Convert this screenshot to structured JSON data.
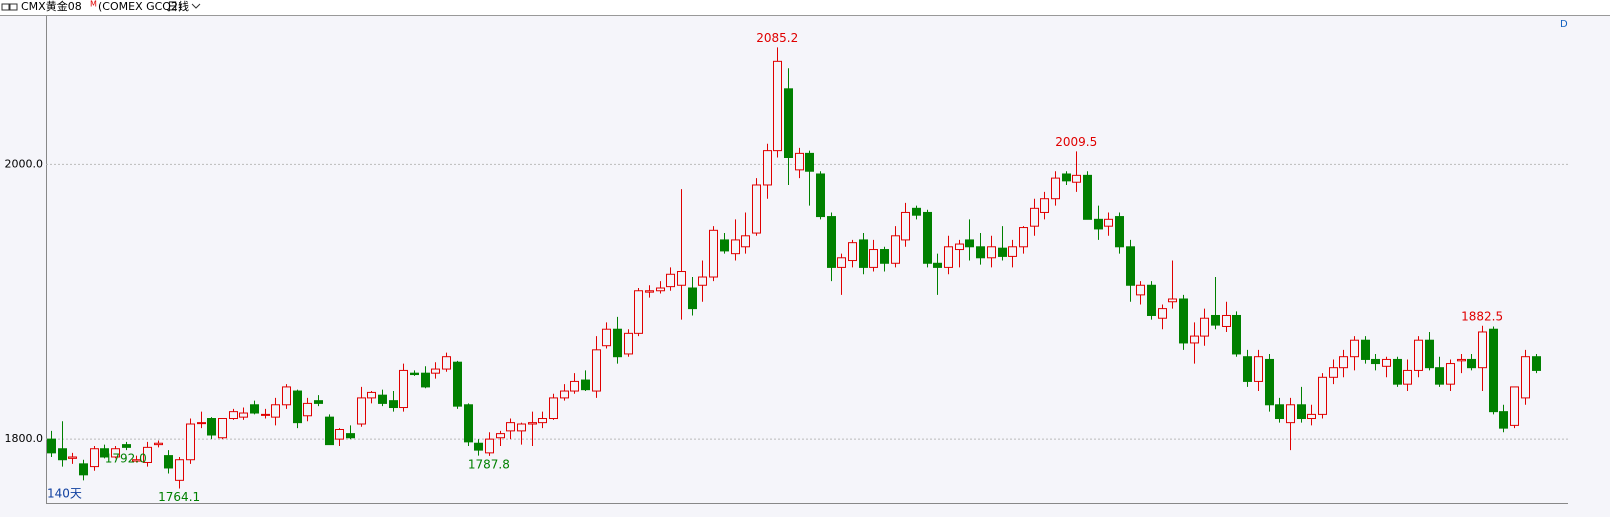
{
  "chart_data": {
    "type": "candlestick",
    "title": "CMX黄金08",
    "title_mark": "M",
    "subtitle": "(COMEX GCQ2)",
    "period": "日线",
    "span_label": "140天",
    "corner_label": "D",
    "ylim": [
      1753.5,
      2108
    ],
    "yticks": [
      {
        "value": 1800,
        "label": "1800.0"
      },
      {
        "value": 2000,
        "label": "2000.0"
      }
    ],
    "grid": true,
    "up_color": "#e00000",
    "down_color": "#008000",
    "high_annotations": [
      2085.2,
      2009.5,
      1882.5
    ],
    "low_annotations": [
      1764.1,
      1787.8,
      {
        "value": 1792,
        "label": "1792.0"
      }
    ],
    "series": {
      "open": [
        1800,
        1793,
        1786,
        1782,
        1780,
        1793,
        1787,
        1796,
        1784,
        1783,
        1796,
        1788,
        1770,
        1785,
        1812,
        1815,
        1801,
        1815,
        1816,
        1825,
        1818,
        1816,
        1825,
        1835,
        1817,
        1828,
        1816,
        1800,
        1804,
        1811,
        1830,
        1832,
        1828,
        1823,
        1848,
        1848,
        1848,
        1851,
        1856,
        1825,
        1797,
        1790,
        1801,
        1806,
        1806,
        1811,
        1812,
        1815,
        1830,
        1835,
        1843,
        1835,
        1868,
        1880,
        1862,
        1877,
        1907,
        1908,
        1911,
        1912,
        1910,
        1912,
        1918,
        1945,
        1935,
        1940,
        1950,
        1985,
        2010,
        2055,
        1996,
        2008,
        1993,
        1962,
        1925,
        1930,
        1945,
        1925,
        1938,
        1928,
        1945,
        1968,
        1965,
        1928,
        1925,
        1938,
        1945,
        1940,
        1932,
        1939,
        1933,
        1940,
        1955,
        1965,
        1975,
        1993,
        1987,
        1992,
        1960,
        1955,
        1962,
        1940,
        1905,
        1912,
        1888,
        1900,
        1902,
        1870,
        1875,
        1890,
        1882,
        1890,
        1860,
        1842,
        1858,
        1825,
        1812,
        1825,
        1815,
        1818,
        1845,
        1852,
        1860,
        1872,
        1858,
        1853,
        1858,
        1840,
        1850,
        1872,
        1852,
        1840,
        1857,
        1858,
        1852,
        1880,
        1820,
        1810,
        1830,
        1860
      ],
      "high": [
        1806,
        1813,
        1790,
        1785,
        1795,
        1796,
        1795,
        1798,
        1788,
        1798,
        1799,
        1792,
        1787,
        1815,
        1820,
        1816,
        1815,
        1822,
        1823,
        1828,
        1822,
        1830,
        1840,
        1836,
        1830,
        1832,
        1818,
        1808,
        1810,
        1838,
        1835,
        1836,
        1835,
        1855,
        1850,
        1853,
        1856,
        1863,
        1857,
        1826,
        1800,
        1805,
        1806,
        1815,
        1812,
        1820,
        1820,
        1833,
        1840,
        1848,
        1850,
        1875,
        1885,
        1889,
        1880,
        1910,
        1912,
        1915,
        1925,
        1982,
        1918,
        1930,
        1955,
        1950,
        1960,
        1965,
        1990,
        2015,
        2085.2,
        2070,
        2012,
        2010,
        1995,
        1965,
        1935,
        1945,
        1950,
        1945,
        1940,
        1955,
        1972,
        1970,
        1967,
        1935,
        1948,
        1945,
        1960,
        1950,
        1948,
        1955,
        1945,
        1955,
        1975,
        1980,
        1995,
        1995,
        2009.5,
        1995,
        1970,
        1965,
        1965,
        1945,
        1915,
        1915,
        1898,
        1930,
        1905,
        1885,
        1895,
        1918,
        1900,
        1893,
        1865,
        1865,
        1862,
        1830,
        1830,
        1838,
        1825,
        1848,
        1858,
        1865,
        1875,
        1875,
        1862,
        1860,
        1860,
        1858,
        1875,
        1878,
        1860,
        1858,
        1862,
        1862,
        1882.5,
        1882,
        1825,
        1838,
        1865,
        1862
      ],
      "low": [
        1787,
        1780,
        1782,
        1770,
        1777,
        1786,
        1786,
        1792,
        1783,
        1780,
        1794,
        1775,
        1764.1,
        1782,
        1808,
        1800,
        1800,
        1814,
        1814,
        1818,
        1815,
        1810,
        1822,
        1808,
        1813,
        1824,
        1796,
        1795,
        1800,
        1809,
        1826,
        1824,
        1820,
        1820,
        1846,
        1837,
        1844,
        1849,
        1822,
        1795,
        1788,
        1787.8,
        1795,
        1800,
        1796,
        1795,
        1808,
        1814,
        1828,
        1833,
        1835,
        1830,
        1866,
        1855,
        1860,
        1875,
        1903,
        1906,
        1908,
        1887,
        1890,
        1900,
        1915,
        1935,
        1930,
        1935,
        1948,
        1975,
        2005,
        1985,
        1990,
        1970,
        1960,
        1915,
        1905,
        1925,
        1920,
        1922,
        1922,
        1925,
        1940,
        1960,
        1925,
        1905,
        1920,
        1925,
        1930,
        1927,
        1925,
        1930,
        1925,
        1935,
        1948,
        1960,
        1970,
        1985,
        1980,
        1960,
        1945,
        1948,
        1935,
        1900,
        1898,
        1887,
        1880,
        1895,
        1865,
        1855,
        1868,
        1880,
        1878,
        1860,
        1838,
        1835,
        1820,
        1812,
        1792,
        1812,
        1810,
        1815,
        1840,
        1845,
        1850,
        1855,
        1850,
        1845,
        1838,
        1835,
        1845,
        1850,
        1838,
        1835,
        1848,
        1850,
        1835,
        1818,
        1805,
        1808,
        1825,
        1848
      ],
      "close": [
        1790,
        1785,
        1787,
        1774,
        1793,
        1787,
        1793,
        1794,
        1785,
        1794,
        1797,
        1779,
        1785,
        1811,
        1812,
        1803,
        1815,
        1820,
        1819,
        1819,
        1818,
        1825,
        1838,
        1812,
        1826,
        1826,
        1796,
        1807,
        1801,
        1830,
        1834,
        1826,
        1823,
        1850,
        1847,
        1838,
        1851,
        1860,
        1824,
        1798,
        1792,
        1800,
        1804,
        1812,
        1811,
        1812,
        1815,
        1830,
        1835,
        1842,
        1836,
        1865,
        1880,
        1860,
        1877,
        1908,
        1908,
        1910,
        1920,
        1922,
        1895,
        1918,
        1952,
        1937,
        1945,
        1948,
        1985,
        2010,
        2075,
        2005,
        2008,
        1995,
        1962,
        1925,
        1932,
        1943,
        1925,
        1938,
        1928,
        1948,
        1965,
        1963,
        1928,
        1925,
        1940,
        1942,
        1940,
        1932,
        1940,
        1933,
        1940,
        1954,
        1968,
        1975,
        1990,
        1988,
        1992,
        1960,
        1953,
        1960,
        1940,
        1912,
        1912,
        1890,
        1895,
        1902,
        1870,
        1875,
        1888,
        1883,
        1890,
        1862,
        1842,
        1860,
        1825,
        1815,
        1825,
        1815,
        1818,
        1845,
        1852,
        1860,
        1872,
        1858,
        1855,
        1858,
        1840,
        1850,
        1872,
        1852,
        1840,
        1855,
        1858,
        1852,
        1878,
        1820,
        1808,
        1838,
        1860,
        1850
      ]
    }
  }
}
